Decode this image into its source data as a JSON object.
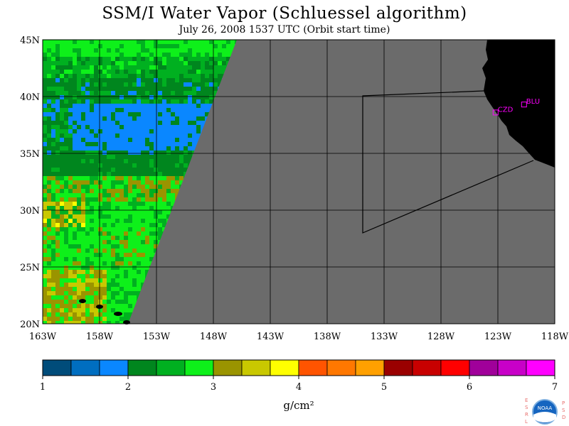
{
  "header": {
    "title": "SSM/I Water Vapor (Schluessel algorithm)",
    "subtitle": "July 26, 2008  1537 UTC  (Orbit start time)"
  },
  "map": {
    "lat_labels": [
      "45N",
      "40N",
      "35N",
      "30N",
      "25N",
      "20N"
    ],
    "lon_labels": [
      "163W",
      "158W",
      "153W",
      "148W",
      "143W",
      "138W",
      "133W",
      "128W",
      "123W",
      "118W"
    ],
    "lat_range": [
      20,
      45
    ],
    "lon_range": [
      -163,
      -118
    ],
    "background_color": "#6b6b6b",
    "land_color": "#000000",
    "stations": [
      {
        "label": "CZD",
        "lat": 38.6,
        "lon": -123.2
      },
      {
        "label": "BLU",
        "lat": 39.3,
        "lon": -120.7
      }
    ],
    "station_color": "#ff00ff"
  },
  "colorbar": {
    "tick_labels": [
      "1",
      "2",
      "3",
      "4",
      "5",
      "6",
      "7"
    ],
    "units": "g/cm²",
    "colors": [
      "#004c7a",
      "#006ec0",
      "#0a87ff",
      "#00861e",
      "#00b020",
      "#0ef01a",
      "#9a9400",
      "#c9c800",
      "#ffff00",
      "#ff5400",
      "#ff7800",
      "#ffa000",
      "#9a0000",
      "#c80000",
      "#ff0000",
      "#a0009a",
      "#c800c8",
      "#ff00ff"
    ]
  },
  "logo": {
    "left_letters": "ESRL",
    "right_letters": "PSD",
    "name": "NOAA"
  }
}
